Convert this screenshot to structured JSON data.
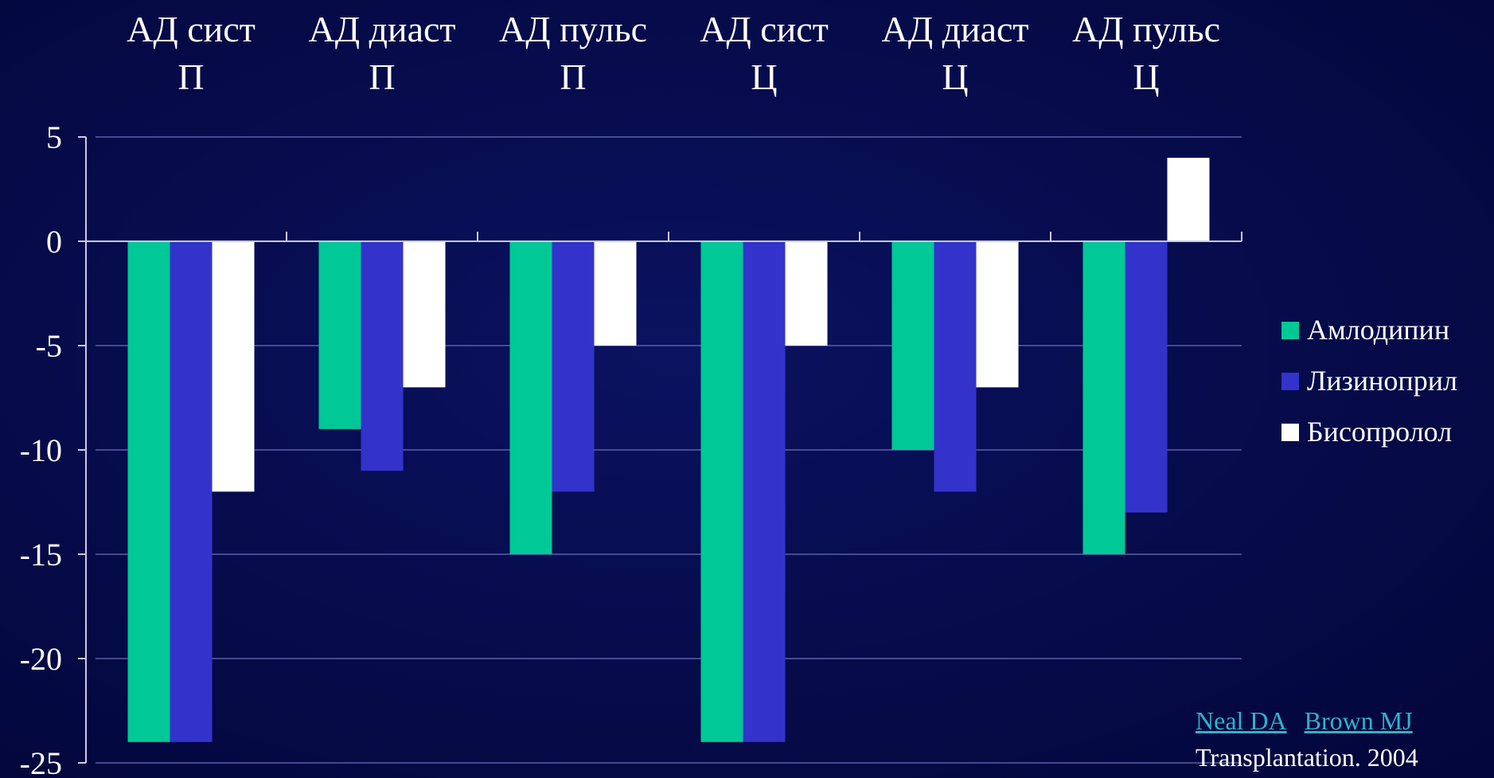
{
  "chart_data": {
    "type": "bar",
    "categories": [
      [
        "АД сист",
        "П"
      ],
      [
        "АД диаст",
        "П"
      ],
      [
        "АД пульс",
        "П"
      ],
      [
        "АД сист",
        "Ц"
      ],
      [
        "АД диаст",
        "Ц"
      ],
      [
        "АД пульс",
        "Ц"
      ]
    ],
    "series": [
      {
        "name": "Амлодипин",
        "color": "#00c896",
        "values": [
          -24,
          -9,
          -15,
          -24,
          -10,
          -15
        ]
      },
      {
        "name": "Лизиноприл",
        "color": "#3333cc",
        "values": [
          -24,
          -11,
          -12,
          -24,
          -12,
          -13
        ]
      },
      {
        "name": "Бисопролол",
        "color": "#ffffff",
        "values": [
          -12,
          -7,
          -5,
          -5,
          -7,
          4
        ]
      }
    ],
    "ylim": [
      -25,
      5
    ],
    "yticks": [
      5,
      0,
      -5,
      -10,
      -15,
      -20,
      -25
    ],
    "grid": true,
    "legend": "right",
    "title": "",
    "xlabel": "",
    "ylabel": ""
  },
  "citation": {
    "author1": "Neal DA",
    "author2": "Brown MJ",
    "journal": "Transplantation. 2004"
  }
}
